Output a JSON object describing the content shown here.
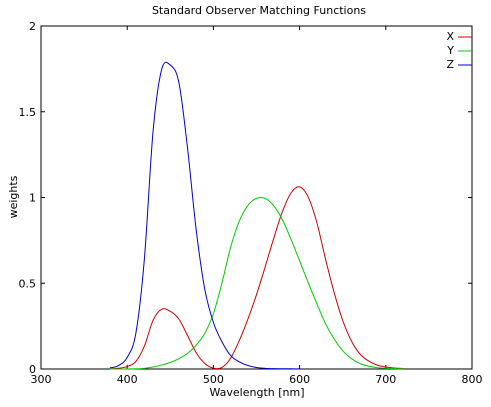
{
  "chart_data": {
    "type": "line",
    "title": "Standard Observer Matching Functions",
    "xlabel": "Wavelength [nm]",
    "ylabel": "weights",
    "xlim": [
      300,
      800
    ],
    "ylim": [
      0,
      2
    ],
    "xticks": [
      300,
      400,
      500,
      600,
      700,
      800
    ],
    "yticks": [
      0,
      0.5,
      1,
      1.5,
      2
    ],
    "xtick_labels": [
      "300",
      "400",
      "500",
      "600",
      "700",
      "800"
    ],
    "ytick_labels": [
      "0",
      "0.5",
      "1",
      "1.5",
      "2"
    ],
    "grid": false,
    "legend_position": "top-right",
    "series": [
      {
        "name": "X",
        "color": "#cc0000",
        "points": [
          [
            380,
            0.0014
          ],
          [
            390,
            0.0042
          ],
          [
            400,
            0.0143
          ],
          [
            410,
            0.0435
          ],
          [
            420,
            0.1344
          ],
          [
            430,
            0.2839
          ],
          [
            440,
            0.3483
          ],
          [
            450,
            0.3362
          ],
          [
            460,
            0.2908
          ],
          [
            470,
            0.1954
          ],
          [
            480,
            0.0956
          ],
          [
            490,
            0.032
          ],
          [
            500,
            0.0049
          ],
          [
            510,
            0.0093
          ],
          [
            520,
            0.0633
          ],
          [
            530,
            0.1655
          ],
          [
            540,
            0.2904
          ],
          [
            550,
            0.4334
          ],
          [
            560,
            0.5945
          ],
          [
            570,
            0.7621
          ],
          [
            580,
            0.9163
          ],
          [
            590,
            1.0263
          ],
          [
            600,
            1.0622
          ],
          [
            610,
            1.0026
          ],
          [
            620,
            0.8544
          ],
          [
            630,
            0.6424
          ],
          [
            640,
            0.4479
          ],
          [
            650,
            0.2835
          ],
          [
            660,
            0.1649
          ],
          [
            670,
            0.0874
          ],
          [
            680,
            0.0468
          ],
          [
            690,
            0.0227
          ],
          [
            700,
            0.0114
          ],
          [
            710,
            0.0058
          ],
          [
            720,
            0.0029
          ]
        ]
      },
      {
        "name": "Y",
        "color": "#00cc00",
        "points": [
          [
            380,
            0.0
          ],
          [
            390,
            0.0001
          ],
          [
            400,
            0.0004
          ],
          [
            410,
            0.0012
          ],
          [
            420,
            0.004
          ],
          [
            430,
            0.0116
          ],
          [
            440,
            0.023
          ],
          [
            450,
            0.038
          ],
          [
            460,
            0.06
          ],
          [
            470,
            0.091
          ],
          [
            480,
            0.139
          ],
          [
            490,
            0.208
          ],
          [
            500,
            0.323
          ],
          [
            510,
            0.503
          ],
          [
            520,
            0.71
          ],
          [
            530,
            0.862
          ],
          [
            540,
            0.954
          ],
          [
            550,
            0.995
          ],
          [
            560,
            0.995
          ],
          [
            570,
            0.952
          ],
          [
            580,
            0.87
          ],
          [
            590,
            0.757
          ],
          [
            600,
            0.631
          ],
          [
            610,
            0.503
          ],
          [
            620,
            0.381
          ],
          [
            630,
            0.265
          ],
          [
            640,
            0.175
          ],
          [
            650,
            0.107
          ],
          [
            660,
            0.061
          ],
          [
            670,
            0.032
          ],
          [
            680,
            0.017
          ],
          [
            690,
            0.0082
          ],
          [
            700,
            0.0041
          ],
          [
            710,
            0.0021
          ],
          [
            720,
            0.001
          ]
        ]
      },
      {
        "name": "Z",
        "color": "#0000cc",
        "points": [
          [
            380,
            0.0065
          ],
          [
            390,
            0.0201
          ],
          [
            400,
            0.0679
          ],
          [
            410,
            0.2074
          ],
          [
            420,
            0.6456
          ],
          [
            430,
            1.3856
          ],
          [
            440,
            1.7471
          ],
          [
            450,
            1.7721
          ],
          [
            460,
            1.6692
          ],
          [
            470,
            1.2876
          ],
          [
            480,
            0.813
          ],
          [
            490,
            0.4652
          ],
          [
            500,
            0.272
          ],
          [
            510,
            0.1582
          ],
          [
            520,
            0.0782
          ],
          [
            530,
            0.0422
          ],
          [
            540,
            0.0203
          ],
          [
            550,
            0.0087
          ],
          [
            560,
            0.0039
          ],
          [
            570,
            0.0021
          ],
          [
            580,
            0.0017
          ],
          [
            590,
            0.0011
          ],
          [
            600,
            0.0008
          ]
        ]
      }
    ]
  }
}
